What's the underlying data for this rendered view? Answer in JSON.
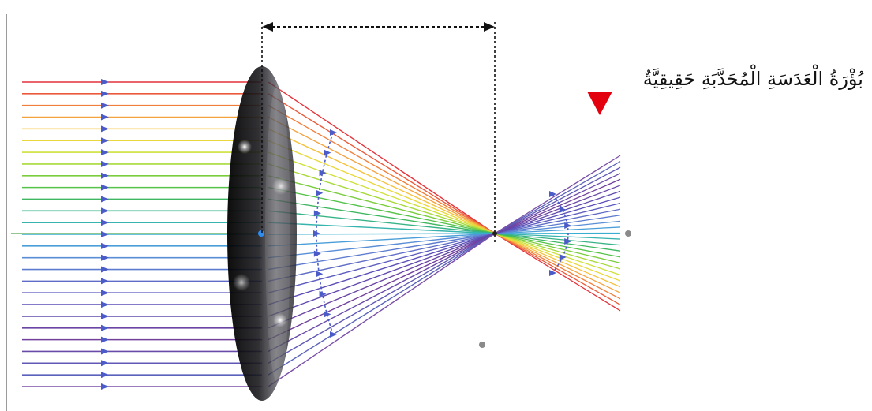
{
  "caption": {
    "text": "بُؤْرَةُ الْعَدَسَةِ الْمُحَدَّبَةِ حَقِيقِيَّةٌ",
    "marker_color": "#e3000f"
  },
  "diagram": {
    "ray_count": 27,
    "ray_colors": [
      "#e4323a",
      "#ea5a3a",
      "#f07f3c",
      "#f4a23e",
      "#f4c23e",
      "#e9d83c",
      "#cfe03a",
      "#a7d93a",
      "#7ccd3e",
      "#55c34a",
      "#3fb760",
      "#38b387",
      "#36b4ad",
      "#3aaed0",
      "#4a9fd8",
      "#5a8ed6",
      "#5e7ccf",
      "#5e6cc7",
      "#5c5cc0",
      "#5c4fb8",
      "#624aae",
      "#6a45a5",
      "#72409c",
      "#6a4aa8",
      "#5f58b4",
      "#5a62bc",
      "#7a4ea8"
    ],
    "arrow_color": "#4b5bc8",
    "lens_color": "#1c1c20",
    "axis_point_color": "#8a8a8a",
    "dimension_color": "#111111"
  }
}
